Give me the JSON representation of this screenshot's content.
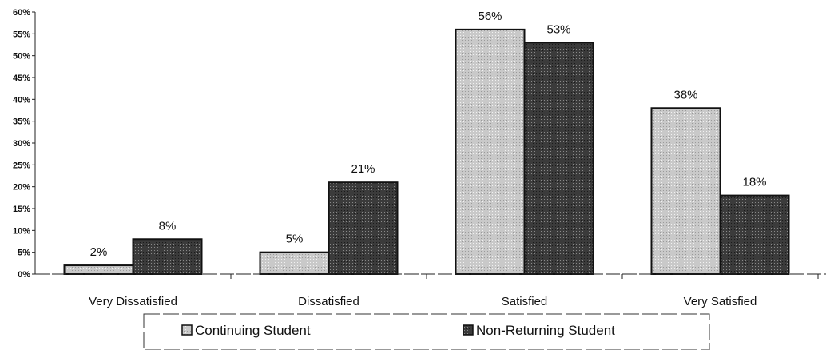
{
  "chart_data": {
    "type": "bar",
    "categories": [
      "Very Dissatisfied",
      "Dissatisfied",
      "Satisfied",
      "Very Satisfied"
    ],
    "series": [
      {
        "name": "Continuing Student",
        "values": [
          2,
          5,
          56,
          38
        ],
        "labels": [
          "2%",
          "5%",
          "56%",
          "38%"
        ],
        "color": "#c8c8c8"
      },
      {
        "name": "Non-Returning Student",
        "values": [
          8,
          21,
          53,
          18
        ],
        "labels": [
          "8%",
          "21%",
          "53%",
          "18%"
        ],
        "color": "#3a3a3a"
      }
    ],
    "ylim": [
      0,
      60
    ],
    "yticks": [
      0,
      5,
      10,
      15,
      20,
      25,
      30,
      35,
      40,
      45,
      50,
      55,
      60
    ],
    "ytick_labels": [
      "0%",
      "5%",
      "10%",
      "15%",
      "20%",
      "25%",
      "30%",
      "35%",
      "40%",
      "45%",
      "50%",
      "55%",
      "60%"
    ],
    "legend_position": "bottom",
    "grid": false,
    "title": "",
    "xlabel": "",
    "ylabel": ""
  }
}
